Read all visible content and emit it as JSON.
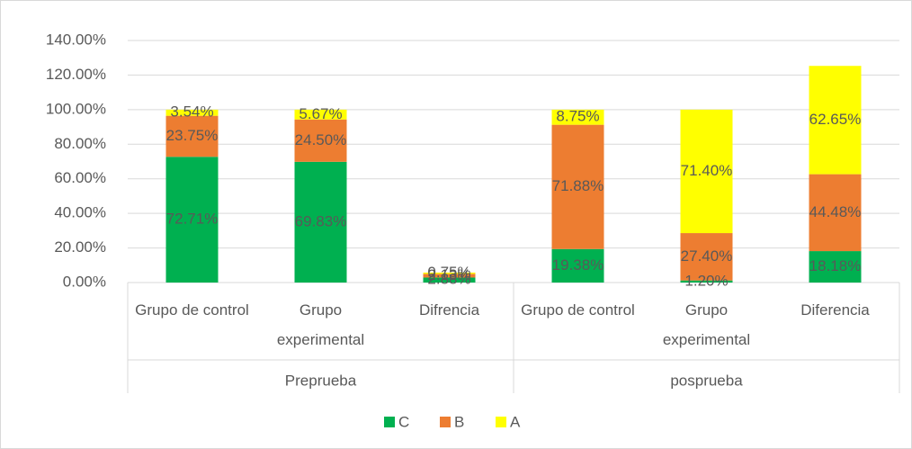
{
  "chart_data": {
    "type": "bar",
    "stacked": true,
    "groups": [
      {
        "name": "Preprueba",
        "categories": [
          "Grupo de control",
          "Grupo experimental",
          "Difrencia"
        ]
      },
      {
        "name": "posprueba",
        "categories": [
          "Grupo de control",
          "Grupo experimental",
          "Diferencia"
        ]
      }
    ],
    "series": [
      {
        "name": "C",
        "color": "#00b050",
        "values": [
          72.71,
          69.83,
          2.88,
          19.38,
          1.2,
          18.18
        ],
        "value_labels": [
          "72.71%",
          "69.83%",
          "2.88%",
          "19.38%",
          "1.20%",
          "18.18%"
        ]
      },
      {
        "name": "B",
        "color": "#ed7d31",
        "values": [
          23.75,
          24.5,
          2.13,
          71.88,
          27.4,
          44.48
        ],
        "value_labels": [
          "23.75%",
          "24.50%",
          "2.13%",
          "71.88%",
          "27.40%",
          "44.48%"
        ]
      },
      {
        "name": "A",
        "color": "#ffff00",
        "values": [
          3.54,
          5.67,
          0.75,
          8.75,
          71.4,
          62.65
        ],
        "value_labels": [
          "3.54%",
          "5.67%",
          "0.75%",
          "8.75%",
          "71.40%",
          "62.65%"
        ]
      }
    ],
    "ylim": [
      0,
      140
    ],
    "yticks": [
      {
        "value": 0,
        "label": "0.00%"
      },
      {
        "value": 20,
        "label": "20.00%"
      },
      {
        "value": 40,
        "label": "40.00%"
      },
      {
        "value": 60,
        "label": "60.00%"
      },
      {
        "value": 80,
        "label": "80.00%"
      },
      {
        "value": 100,
        "label": "100.00%"
      },
      {
        "value": 120,
        "label": "120.00%"
      },
      {
        "value": 140,
        "label": "140.00%"
      }
    ],
    "grid": true,
    "legend": "bottom"
  }
}
